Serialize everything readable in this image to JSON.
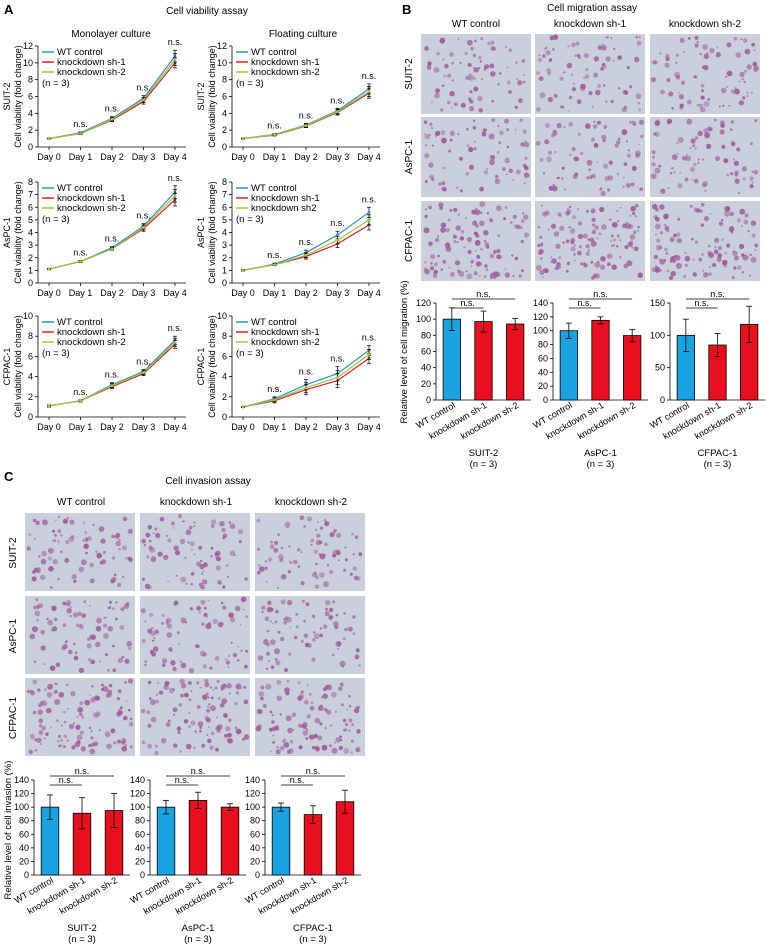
{
  "colors": {
    "wt": "#2e8fd8",
    "sh1": "#e0202a",
    "sh2": "#9acb3c",
    "bar_wt": "#1aa3e0",
    "bar_kd": "#e8101e",
    "tissue": "#c9cfdb",
    "cell": "#a05a9c"
  },
  "panel_letters": {
    "a": "A",
    "b": "B",
    "c": "C"
  },
  "panel_a": {
    "title": "Cell viability assay",
    "col_titles": [
      "Monolayer culture",
      "Floating culture"
    ],
    "ylabel": "Cell viability (fold change)",
    "ns": "n.s."
  },
  "panel_b": {
    "title": "Cell migration assay",
    "col_titles": [
      "WT control",
      "knockdown sh-1",
      "knockdown sh-2"
    ],
    "row_titles": [
      "SUIT-2",
      "AsPC-1",
      "CFPAC-1"
    ],
    "ylabel": "Relative level of cell migration (%)",
    "ns": "n.s."
  },
  "panel_c": {
    "title": "Cell invasion assay",
    "col_titles": [
      "WT control",
      "knockdown sh-1",
      "knockdown sh-2"
    ],
    "row_titles": [
      "SUIT-2",
      "AsPC-1",
      "CFPAC-1"
    ],
    "ylabel": "Relative level of cell invasion (%)",
    "ns": "n.s."
  },
  "chart_data": [
    {
      "id": "a-suit2-mono",
      "type": "line",
      "panel": "A",
      "row_label": "SUIT-2",
      "column": "Monolayer culture",
      "categories": [
        "Day 0",
        "Day 1",
        "Day 2",
        "Day 3",
        "Day 4"
      ],
      "ylim": [
        0,
        12
      ],
      "yticks": [
        0,
        2,
        4,
        6,
        8,
        10,
        12
      ],
      "legend": [
        "WT control",
        "knockdown sh-1",
        "knockdown sh-2"
      ],
      "legend_note": "(n = 3)",
      "series": [
        {
          "name": "WT control",
          "values": [
            1,
            1.7,
            3.4,
            5.8,
            10.8
          ],
          "errors": [
            0.05,
            0.1,
            0.2,
            0.3,
            0.7
          ]
        },
        {
          "name": "knockdown sh-1",
          "values": [
            1,
            1.6,
            3.2,
            5.4,
            10.0
          ],
          "errors": [
            0.05,
            0.1,
            0.2,
            0.3,
            0.6
          ]
        },
        {
          "name": "knockdown sh-2",
          "values": [
            1,
            1.6,
            3.3,
            5.6,
            10.4
          ],
          "errors": [
            0.05,
            0.1,
            0.2,
            0.3,
            0.7
          ]
        }
      ],
      "annotations": [
        "n.s.",
        "n.s.",
        "n.s.",
        "n.s."
      ]
    },
    {
      "id": "a-suit2-float",
      "type": "line",
      "panel": "A",
      "row_label": "SUIT-2",
      "column": "Floating culture",
      "categories": [
        "Day 0",
        "Day 1",
        "Day 2",
        "Day 3",
        "Day 4"
      ],
      "ylim": [
        0,
        12
      ],
      "yticks": [
        0,
        2,
        4,
        6,
        8,
        10,
        12
      ],
      "legend": [
        "WT control",
        "knockdown sh-1",
        "knockdown sh-2"
      ],
      "legend_note": "(n = 3)",
      "series": [
        {
          "name": "WT control",
          "values": [
            1,
            1.5,
            2.6,
            4.3,
            6.9
          ],
          "errors": [
            0.05,
            0.1,
            0.2,
            0.3,
            0.6
          ]
        },
        {
          "name": "knockdown sh-1",
          "values": [
            1,
            1.4,
            2.5,
            4.1,
            6.4
          ],
          "errors": [
            0.05,
            0.1,
            0.2,
            0.3,
            0.6
          ]
        },
        {
          "name": "knockdown sh-2",
          "values": [
            1,
            1.45,
            2.55,
            4.2,
            6.6
          ],
          "errors": [
            0.05,
            0.1,
            0.2,
            0.3,
            0.6
          ]
        }
      ],
      "annotations": [
        "n.s.",
        "n.s.",
        "n.s.",
        "n.s."
      ]
    },
    {
      "id": "a-aspc1-mono",
      "type": "line",
      "panel": "A",
      "row_label": "AsPC-1",
      "column": "Monolayer culture",
      "categories": [
        "Day 0",
        "Day 1",
        "Day 2",
        "Day 3",
        "Day 4"
      ],
      "ylim": [
        0,
        8
      ],
      "yticks": [
        0,
        1,
        2,
        3,
        4,
        5,
        6,
        7,
        8
      ],
      "legend": [
        "WT control",
        "knockdown sh-1",
        "knockdown sh-2"
      ],
      "legend_note": "(n = 3)",
      "series": [
        {
          "name": "WT control",
          "values": [
            1.1,
            1.7,
            2.8,
            4.5,
            7.2
          ],
          "errors": [
            0.05,
            0.08,
            0.1,
            0.2,
            0.5
          ]
        },
        {
          "name": "knockdown sh-1",
          "values": [
            1.1,
            1.7,
            2.7,
            4.3,
            6.6
          ],
          "errors": [
            0.05,
            0.08,
            0.1,
            0.2,
            0.5
          ]
        },
        {
          "name": "knockdown sh-2",
          "values": [
            1.1,
            1.7,
            2.7,
            4.4,
            6.9
          ],
          "errors": [
            0.05,
            0.08,
            0.1,
            0.2,
            0.5
          ]
        }
      ],
      "annotations": [
        "n.s.",
        "n.s.",
        "n.s.",
        "n.s."
      ]
    },
    {
      "id": "a-aspc1-float",
      "type": "line",
      "panel": "A",
      "row_label": "AsPC-1",
      "column": "Floating culture",
      "categories": [
        "Day 0",
        "Day 1",
        "Day 2",
        "Day 3",
        "Day 4"
      ],
      "ylim": [
        0,
        8
      ],
      "yticks": [
        0,
        1,
        2,
        3,
        4,
        5,
        6,
        7,
        8
      ],
      "legend": [
        "WT control",
        "knockdown sh-1",
        "knockdown sh2"
      ],
      "legend_note": "(n = 3)",
      "series": [
        {
          "name": "WT control",
          "values": [
            1,
            1.5,
            2.4,
            3.8,
            5.6
          ],
          "errors": [
            0.05,
            0.08,
            0.2,
            0.3,
            0.4
          ]
        },
        {
          "name": "knockdown sh-1",
          "values": [
            1,
            1.45,
            2.1,
            3.1,
            4.6
          ],
          "errors": [
            0.05,
            0.08,
            0.2,
            0.3,
            0.4
          ]
        },
        {
          "name": "knockdown sh2",
          "values": [
            1,
            1.45,
            2.2,
            3.4,
            5.0
          ],
          "errors": [
            0.05,
            0.08,
            0.2,
            0.3,
            0.4
          ]
        }
      ],
      "annotations": [
        "n.s.",
        "n.s.",
        "n.s.",
        "n.s."
      ]
    },
    {
      "id": "a-cfpac1-mono",
      "type": "line",
      "panel": "A",
      "row_label": "CFPAC-1",
      "column": "Monolayer culture",
      "categories": [
        "Day 0",
        "Day 1",
        "Day 2",
        "Day 3",
        "Day 4"
      ],
      "ylim": [
        0,
        10
      ],
      "yticks": [
        0,
        2,
        4,
        6,
        8,
        10
      ],
      "legend": [
        "WT control",
        "knockdown sh-1",
        "knockdown sh-2"
      ],
      "legend_note": "(n = 3)",
      "series": [
        {
          "name": "WT control",
          "values": [
            1.1,
            1.6,
            3.2,
            4.5,
            7.6
          ],
          "errors": [
            0.1,
            0.1,
            0.2,
            0.2,
            0.4
          ]
        },
        {
          "name": "knockdown sh-1",
          "values": [
            1.1,
            1.6,
            3.0,
            4.3,
            7.2
          ],
          "errors": [
            0.1,
            0.1,
            0.2,
            0.2,
            0.4
          ]
        },
        {
          "name": "knockdown sh-2",
          "values": [
            1.1,
            1.6,
            3.1,
            4.4,
            7.4
          ],
          "errors": [
            0.1,
            0.1,
            0.2,
            0.2,
            0.4
          ]
        }
      ],
      "annotations": [
        "n.s.",
        "n.s.",
        "n.s.",
        "n.s."
      ]
    },
    {
      "id": "a-cfpac1-float",
      "type": "line",
      "panel": "A",
      "row_label": "CFPAC-1",
      "column": "Floating culture",
      "categories": [
        "Day 0",
        "Day 1",
        "Day 2",
        "Day 3",
        "Day 4"
      ],
      "ylim": [
        0,
        10
      ],
      "yticks": [
        0,
        2,
        4,
        6,
        8,
        10
      ],
      "legend": [
        "WT control",
        "knockdown sh-1",
        "knockdown sh-2"
      ],
      "legend_note": "(n = 3)",
      "series": [
        {
          "name": "WT control",
          "values": [
            1,
            1.8,
            3.2,
            4.3,
            6.6
          ],
          "errors": [
            0.05,
            0.2,
            0.5,
            0.7,
            0.5
          ]
        },
        {
          "name": "knockdown sh-1",
          "values": [
            1,
            1.6,
            2.7,
            3.6,
            5.8
          ],
          "errors": [
            0.05,
            0.2,
            0.5,
            0.7,
            0.5
          ]
        },
        {
          "name": "knockdown sh-2",
          "values": [
            1,
            1.7,
            2.9,
            3.9,
            6.2
          ],
          "errors": [
            0.05,
            0.2,
            0.5,
            0.7,
            0.5
          ]
        }
      ],
      "annotations": [
        "n.s.",
        "n.s.",
        "n.s.",
        "n.s."
      ]
    },
    {
      "id": "b-suit2",
      "type": "bar",
      "panel": "B",
      "group_label": "SUIT-2",
      "n_label": "(n = 3)",
      "categories": [
        "WT control",
        "knockdown sh-1",
        "knockdown sh-2"
      ],
      "values": [
        100,
        97,
        94
      ],
      "errors": [
        14,
        13,
        7
      ],
      "ylim": [
        0,
        120
      ],
      "yticks": [
        0,
        20,
        40,
        60,
        80,
        100,
        120
      ],
      "annotations": [
        "n.s.",
        "n.s."
      ]
    },
    {
      "id": "b-aspc1",
      "type": "bar",
      "panel": "B",
      "group_label": "AsPC-1",
      "n_label": "(n = 3)",
      "categories": [
        "WT control",
        "knockdown sh-1",
        "knockdown sh-2"
      ],
      "values": [
        100,
        115,
        93
      ],
      "errors": [
        11,
        5,
        9
      ],
      "ylim": [
        0,
        140
      ],
      "yticks": [
        0,
        20,
        40,
        60,
        80,
        100,
        120,
        140
      ],
      "annotations": [
        "n.s.",
        "n.s."
      ]
    },
    {
      "id": "b-cfpac1",
      "type": "bar",
      "panel": "B",
      "group_label": "CFPAC-1",
      "n_label": "(n = 3)",
      "categories": [
        "WT control",
        "knockdown sh-1",
        "knockdown sh-2"
      ],
      "values": [
        100,
        85,
        117
      ],
      "errors": [
        25,
        18,
        28
      ],
      "ylim": [
        0,
        150
      ],
      "yticks": [
        0,
        50,
        100,
        150
      ],
      "annotations": [
        "n.s.",
        "n.s."
      ]
    },
    {
      "id": "c-suit2",
      "type": "bar",
      "panel": "C",
      "group_label": "SUIT-2",
      "n_label": "(n = 3)",
      "categories": [
        "WT control",
        "knockdown sh-1",
        "knockdown sh-2"
      ],
      "values": [
        100,
        91,
        95
      ],
      "errors": [
        18,
        23,
        25
      ],
      "ylim": [
        0,
        140
      ],
      "yticks": [
        0,
        20,
        40,
        60,
        80,
        100,
        120,
        140
      ],
      "annotations": [
        "n.s.",
        "n.s."
      ]
    },
    {
      "id": "c-aspc1",
      "type": "bar",
      "panel": "C",
      "group_label": "AsPC-1",
      "n_label": "(n = 3)",
      "categories": [
        "WT control",
        "knockdown sh-1",
        "knockdown sh-2"
      ],
      "values": [
        100,
        110,
        100
      ],
      "errors": [
        10,
        12,
        5
      ],
      "ylim": [
        0,
        140
      ],
      "yticks": [
        0,
        20,
        40,
        60,
        80,
        100,
        120,
        140
      ],
      "annotations": [
        "n.s.",
        "n.s."
      ]
    },
    {
      "id": "c-cfpac1",
      "type": "bar",
      "panel": "C",
      "group_label": "CFPAC-1",
      "n_label": "(n = 3)",
      "categories": [
        "WT control",
        "knockdown sh-1",
        "knockdown sh-2"
      ],
      "values": [
        100,
        89,
        108
      ],
      "errors": [
        6,
        13,
        17
      ],
      "ylim": [
        0,
        140
      ],
      "yticks": [
        0,
        20,
        40,
        60,
        80,
        100,
        120,
        140
      ],
      "annotations": [
        "n.s.",
        "n.s."
      ]
    }
  ]
}
